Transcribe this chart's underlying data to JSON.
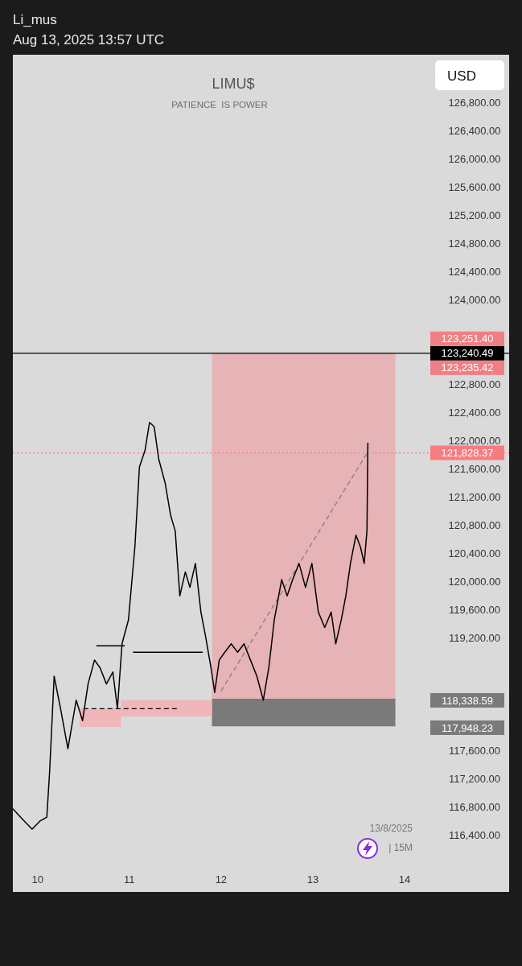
{
  "chart_data": {
    "type": "line",
    "title": "LIMU$",
    "subtitle": "PATIENCE  IS POWER",
    "annotations": [
      "Li_mus",
      "Aug 13, 2025 13:57 UTC",
      "USD",
      "13/8/2025",
      "| 15M",
      "123,251.40",
      "123,235.42",
      "118,338.59",
      "117,948.23"
    ],
    "xlim": [
      9.73,
      15.14
    ],
    "xticks": [
      {
        "value": 10,
        "label": "10"
      },
      {
        "value": 11,
        "label": "11"
      },
      {
        "value": 12,
        "label": "12"
      },
      {
        "value": 13,
        "label": "13"
      },
      {
        "value": 14,
        "label": "14"
      }
    ],
    "ylim": [
      115600,
      127475
    ],
    "yticks": [
      {
        "value": 116400,
        "label": "116,400.00"
      },
      {
        "value": 116800,
        "label": "116,800.00"
      },
      {
        "value": 117200,
        "label": "117,200.00"
      },
      {
        "value": 117600,
        "label": "117,600.00"
      },
      {
        "value": 119200,
        "label": "119,200.00"
      },
      {
        "value": 119600,
        "label": "119,600.00"
      },
      {
        "value": 120000,
        "label": "120,000.00"
      },
      {
        "value": 120400,
        "label": "120,400.00"
      },
      {
        "value": 120800,
        "label": "120,800.00"
      },
      {
        "value": 121200,
        "label": "121,200.00"
      },
      {
        "value": 121600,
        "label": "121,600.00"
      },
      {
        "value": 122000,
        "label": "122,000.00"
      },
      {
        "value": 122400,
        "label": "122,400.00"
      },
      {
        "value": 122800,
        "label": "122,800.00"
      },
      {
        "value": 124000,
        "label": "124,000.00"
      },
      {
        "value": 124400,
        "label": "124,400.00"
      },
      {
        "value": 124800,
        "label": "124,800.00"
      },
      {
        "value": 125200,
        "label": "125,200.00"
      },
      {
        "value": 125600,
        "label": "125,600.00"
      },
      {
        "value": 126000,
        "label": "126,000.00"
      },
      {
        "value": 126400,
        "label": "126,400.00"
      },
      {
        "value": 126800,
        "label": "126,800.00"
      }
    ],
    "ref_lines": [
      {
        "axis": "y",
        "value": 123240.49,
        "label": "123,240.49",
        "color": "#000000",
        "line_style": "solid"
      },
      {
        "axis": "y",
        "value": 121828.37,
        "label": "121,828.37",
        "color": "#f77c80",
        "line_style": "dotted"
      }
    ],
    "series": [
      {
        "color": "#e6b3b6",
        "x": [
          11.9,
          13.9
        ],
        "values": [
          null,
          null
        ],
        "lower": [
          118340,
          118340
        ],
        "upper": [
          123235,
          123235
        ]
      },
      {
        "color": "#7a7a7a",
        "x": [
          11.9,
          13.9
        ],
        "values": [
          null,
          null
        ],
        "lower": [
          117950,
          117950
        ],
        "upper": [
          118340,
          118340
        ]
      },
      {
        "color": "#f0b6b9",
        "x": [
          10.46,
          10.91
        ],
        "values": [
          null,
          null
        ],
        "lower": [
          117940,
          117940
        ],
        "upper": [
          118200,
          118200
        ]
      },
      {
        "color": "#f0b6b9",
        "x": [
          10.91,
          11.9
        ],
        "values": [
          null,
          null
        ],
        "lower": [
          118090,
          118090
        ],
        "upper": [
          118320,
          118320
        ]
      },
      {
        "color": "#000000",
        "line_style": "solid",
        "x": [
          10.64,
          10.95
        ],
        "values": [
          119090,
          119090
        ]
      },
      {
        "color": "#000000",
        "line_style": "solid",
        "x": [
          11.04,
          11.8
        ],
        "values": [
          119000,
          119000
        ]
      },
      {
        "color": "#000000",
        "line_style": "dashed",
        "x": [
          10.5,
          11.55
        ],
        "values": [
          118200,
          118200
        ]
      },
      {
        "color": "#808080",
        "line_style": "dashed",
        "x": [
          12.0,
          13.59
        ],
        "values": [
          118450,
          121820
        ]
      },
      {
        "color": "#000000",
        "line_style": "solid",
        "x": [
          9.73,
          9.85,
          9.94,
          10.03,
          10.1,
          10.13,
          10.18,
          10.25,
          10.33,
          10.42,
          10.49,
          10.55,
          10.62,
          10.68,
          10.75,
          10.82,
          10.87,
          10.92,
          10.99,
          11.06,
          11.11,
          11.17,
          11.22,
          11.27,
          11.32,
          11.39,
          11.45,
          11.5,
          11.55,
          11.61,
          11.66,
          11.72,
          11.78,
          11.83,
          11.89,
          11.93,
          11.98,
          12.04,
          12.11,
          12.18,
          12.25,
          12.32,
          12.39,
          12.46,
          12.52,
          12.58,
          12.66,
          12.72,
          12.78,
          12.85,
          12.92,
          12.99,
          13.06,
          13.13,
          13.2,
          13.25,
          13.31,
          13.36,
          13.41,
          13.47,
          13.52,
          13.56,
          13.59,
          13.6
        ],
        "values": [
          116780,
          116610,
          116490,
          116610,
          116660,
          117290,
          118660,
          118200,
          117630,
          118320,
          118030,
          118550,
          118890,
          118780,
          118550,
          118720,
          118200,
          119120,
          119460,
          120490,
          121630,
          121860,
          122260,
          122200,
          121740,
          121400,
          120940,
          120720,
          119800,
          120140,
          119920,
          120260,
          119570,
          119230,
          118780,
          118430,
          118890,
          119000,
          119120,
          119000,
          119120,
          118890,
          118660,
          118320,
          118780,
          119460,
          120030,
          119800,
          120030,
          120260,
          119920,
          120260,
          119570,
          119350,
          119570,
          119120,
          119460,
          119800,
          120260,
          120660,
          120490,
          120260,
          120720,
          121970
        ]
      }
    ]
  }
}
